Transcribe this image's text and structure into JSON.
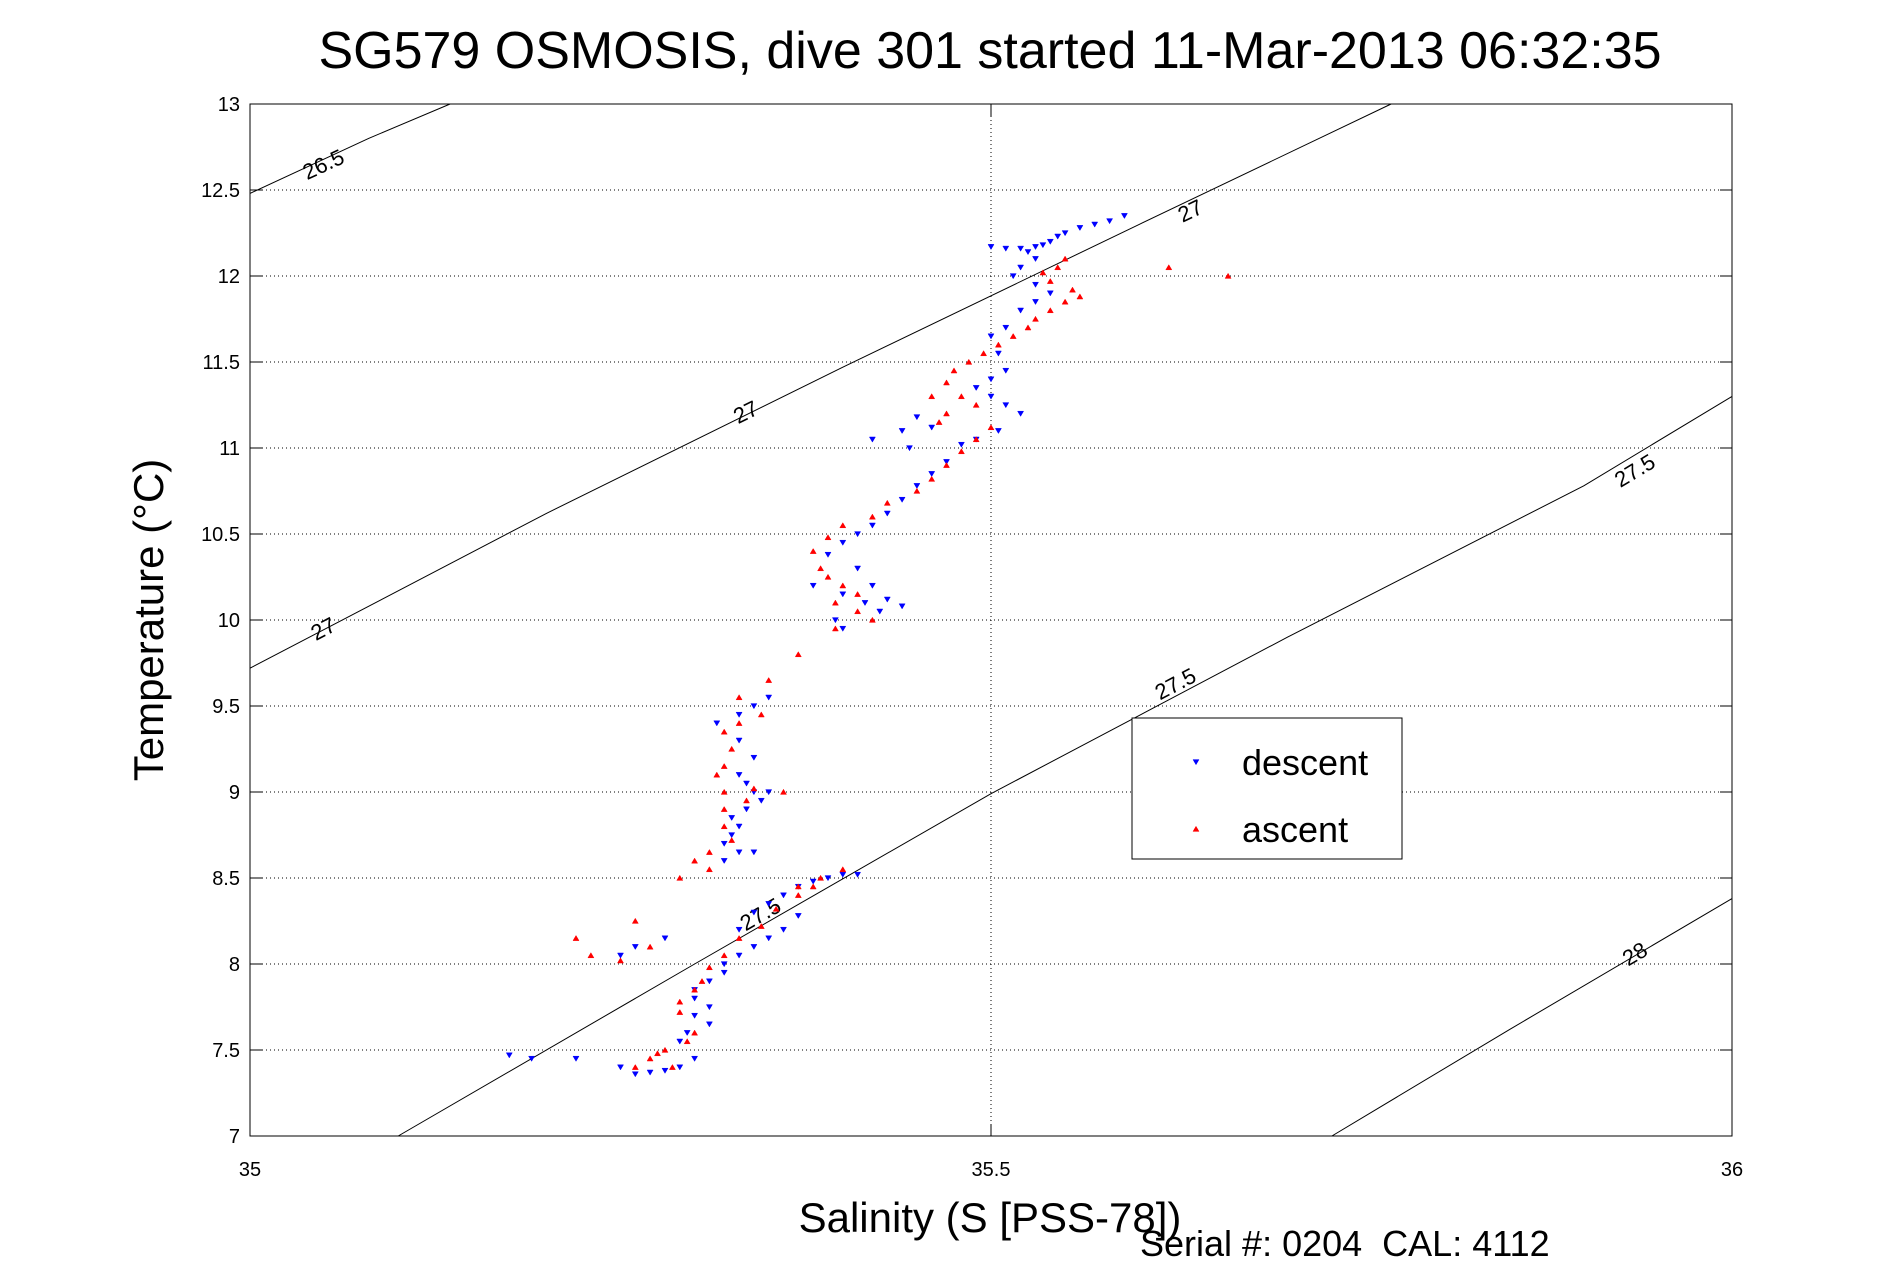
{
  "chart_data": {
    "type": "scatter",
    "title": "SG579 OSMOSIS, dive 301 started 11-Mar-2013 06:32:35",
    "xlabel": "Salinity (S [PSS-78])",
    "ylabel": "Temperature (°C)",
    "xlim": [
      35,
      36
    ],
    "ylim": [
      7,
      13
    ],
    "xticks": [
      35,
      35.5,
      36
    ],
    "xtick_labels": [
      "35",
      "35.5",
      "36"
    ],
    "yticks": [
      7,
      7.5,
      8,
      8.5,
      9,
      9.5,
      10,
      10.5,
      11,
      11.5,
      12,
      12.5,
      13
    ],
    "ytick_labels": [
      "7",
      "7.5",
      "8",
      "8.5",
      "9",
      "9.5",
      "10",
      "10.5",
      "11",
      "11.5",
      "12",
      "12.5",
      "13"
    ],
    "grid": true,
    "legend_position": "center-right",
    "footer": "Serial #: 0204  CAL: 4112",
    "density_contours": [
      {
        "level": "26.5",
        "points": [
          [
            35.0,
            12.48
          ],
          [
            35.08,
            12.8
          ],
          [
            35.135,
            13.0
          ]
        ],
        "labels": [
          {
            "text": "26.5",
            "x": 35.05,
            "y": 12.64
          }
        ]
      },
      {
        "level": "27",
        "points": [
          [
            35.0,
            9.72
          ],
          [
            35.2,
            10.62
          ],
          [
            35.4,
            11.47
          ],
          [
            35.6,
            12.3
          ],
          [
            35.77,
            13.0
          ]
        ],
        "labels": [
          {
            "text": "27",
            "x": 35.05,
            "y": 9.94
          },
          {
            "text": "27",
            "x": 35.335,
            "y": 11.2
          },
          {
            "text": "27",
            "x": 35.635,
            "y": 12.37
          }
        ]
      },
      {
        "level": "27.5",
        "points": [
          [
            35.1,
            7.0
          ],
          [
            35.3,
            8.0
          ],
          [
            35.5,
            8.99
          ],
          [
            35.7,
            9.9
          ],
          [
            35.9,
            10.78
          ],
          [
            36.0,
            11.3
          ]
        ],
        "labels": [
          {
            "text": "27.5",
            "x": 35.345,
            "y": 8.28
          },
          {
            "text": "27.5",
            "x": 35.625,
            "y": 9.62
          },
          {
            "text": "27.5",
            "x": 35.935,
            "y": 10.86
          }
        ]
      },
      {
        "level": "28",
        "points": [
          [
            35.73,
            7.0
          ],
          [
            35.85,
            7.62
          ],
          [
            36.0,
            8.38
          ]
        ],
        "labels": [
          {
            "text": "28",
            "x": 35.935,
            "y": 8.05
          }
        ]
      }
    ],
    "series": [
      {
        "name": "descent",
        "color": "#0000ff",
        "marker": "triangle-down",
        "points": [
          [
            35.59,
            12.35
          ],
          [
            35.58,
            12.32
          ],
          [
            35.57,
            12.3
          ],
          [
            35.56,
            12.28
          ],
          [
            35.55,
            12.25
          ],
          [
            35.545,
            12.23
          ],
          [
            35.54,
            12.2
          ],
          [
            35.535,
            12.18
          ],
          [
            35.53,
            12.17
          ],
          [
            35.52,
            12.16
          ],
          [
            35.51,
            12.16
          ],
          [
            35.5,
            12.17
          ],
          [
            35.525,
            12.14
          ],
          [
            35.53,
            12.1
          ],
          [
            35.52,
            12.05
          ],
          [
            35.515,
            12.0
          ],
          [
            35.53,
            11.95
          ],
          [
            35.54,
            11.9
          ],
          [
            35.53,
            11.85
          ],
          [
            35.52,
            11.8
          ],
          [
            35.51,
            11.7
          ],
          [
            35.5,
            11.65
          ],
          [
            35.505,
            11.55
          ],
          [
            35.51,
            11.45
          ],
          [
            35.5,
            11.4
          ],
          [
            35.49,
            11.35
          ],
          [
            35.5,
            11.3
          ],
          [
            35.51,
            11.25
          ],
          [
            35.52,
            11.2
          ],
          [
            35.505,
            11.1
          ],
          [
            35.49,
            11.05
          ],
          [
            35.48,
            11.02
          ],
          [
            35.46,
            11.12
          ],
          [
            35.45,
            11.18
          ],
          [
            35.44,
            11.1
          ],
          [
            35.42,
            11.05
          ],
          [
            35.445,
            11.0
          ],
          [
            35.47,
            10.92
          ],
          [
            35.46,
            10.85
          ],
          [
            35.45,
            10.78
          ],
          [
            35.44,
            10.7
          ],
          [
            35.43,
            10.62
          ],
          [
            35.42,
            10.55
          ],
          [
            35.41,
            10.5
          ],
          [
            35.4,
            10.45
          ],
          [
            35.39,
            10.38
          ],
          [
            35.41,
            10.3
          ],
          [
            35.42,
            10.2
          ],
          [
            35.43,
            10.12
          ],
          [
            35.44,
            10.08
          ],
          [
            35.425,
            10.05
          ],
          [
            35.415,
            10.1
          ],
          [
            35.4,
            10.15
          ],
          [
            35.38,
            10.2
          ],
          [
            35.395,
            10.0
          ],
          [
            35.4,
            9.95
          ],
          [
            35.35,
            9.55
          ],
          [
            35.34,
            9.5
          ],
          [
            35.33,
            9.45
          ],
          [
            35.315,
            9.4
          ],
          [
            35.33,
            9.3
          ],
          [
            35.34,
            9.2
          ],
          [
            35.33,
            9.1
          ],
          [
            35.335,
            9.05
          ],
          [
            35.34,
            9.0
          ],
          [
            35.35,
            9.0
          ],
          [
            35.345,
            8.95
          ],
          [
            35.335,
            8.9
          ],
          [
            35.325,
            8.85
          ],
          [
            35.33,
            8.8
          ],
          [
            35.325,
            8.75
          ],
          [
            35.32,
            8.7
          ],
          [
            35.33,
            8.65
          ],
          [
            35.34,
            8.65
          ],
          [
            35.32,
            8.6
          ],
          [
            35.41,
            8.52
          ],
          [
            35.4,
            8.52
          ],
          [
            35.39,
            8.5
          ],
          [
            35.38,
            8.48
          ],
          [
            35.37,
            8.45
          ],
          [
            35.36,
            8.4
          ],
          [
            35.35,
            8.35
          ],
          [
            35.34,
            8.3
          ],
          [
            35.33,
            8.2
          ],
          [
            35.28,
            8.15
          ],
          [
            35.26,
            8.1
          ],
          [
            35.25,
            8.05
          ],
          [
            35.37,
            8.28
          ],
          [
            35.36,
            8.2
          ],
          [
            35.35,
            8.15
          ],
          [
            35.34,
            8.1
          ],
          [
            35.33,
            8.05
          ],
          [
            35.32,
            8.0
          ],
          [
            35.32,
            7.95
          ],
          [
            35.31,
            7.9
          ],
          [
            35.3,
            7.85
          ],
          [
            35.3,
            7.8
          ],
          [
            35.31,
            7.75
          ],
          [
            35.3,
            7.7
          ],
          [
            35.31,
            7.65
          ],
          [
            35.295,
            7.6
          ],
          [
            35.29,
            7.55
          ],
          [
            35.3,
            7.45
          ],
          [
            35.29,
            7.4
          ],
          [
            35.28,
            7.38
          ],
          [
            35.27,
            7.37
          ],
          [
            35.26,
            7.36
          ],
          [
            35.175,
            7.47
          ],
          [
            35.19,
            7.45
          ],
          [
            35.22,
            7.45
          ],
          [
            35.25,
            7.4
          ]
        ]
      },
      {
        "name": "ascent",
        "color": "#ff0000",
        "marker": "triangle-up",
        "points": [
          [
            35.55,
            12.1
          ],
          [
            35.545,
            12.05
          ],
          [
            35.535,
            12.02
          ],
          [
            35.54,
            11.97
          ],
          [
            35.555,
            11.92
          ],
          [
            35.56,
            11.88
          ],
          [
            35.55,
            11.85
          ],
          [
            35.54,
            11.8
          ],
          [
            35.53,
            11.75
          ],
          [
            35.525,
            11.7
          ],
          [
            35.515,
            11.65
          ],
          [
            35.505,
            11.6
          ],
          [
            35.495,
            11.55
          ],
          [
            35.485,
            11.5
          ],
          [
            35.475,
            11.45
          ],
          [
            35.47,
            11.38
          ],
          [
            35.48,
            11.3
          ],
          [
            35.49,
            11.25
          ],
          [
            35.47,
            11.2
          ],
          [
            35.46,
            11.3
          ],
          [
            35.465,
            11.15
          ],
          [
            35.5,
            11.12
          ],
          [
            35.49,
            11.05
          ],
          [
            35.48,
            10.98
          ],
          [
            35.47,
            10.9
          ],
          [
            35.46,
            10.82
          ],
          [
            35.45,
            10.75
          ],
          [
            35.43,
            10.68
          ],
          [
            35.42,
            10.6
          ],
          [
            35.4,
            10.55
          ],
          [
            35.39,
            10.48
          ],
          [
            35.38,
            10.4
          ],
          [
            35.385,
            10.3
          ],
          [
            35.39,
            10.25
          ],
          [
            35.4,
            10.2
          ],
          [
            35.41,
            10.15
          ],
          [
            35.395,
            10.1
          ],
          [
            35.41,
            10.05
          ],
          [
            35.42,
            10.0
          ],
          [
            35.395,
            9.95
          ],
          [
            35.37,
            9.8
          ],
          [
            35.35,
            9.65
          ],
          [
            35.33,
            9.55
          ],
          [
            35.345,
            9.45
          ],
          [
            35.33,
            9.4
          ],
          [
            35.32,
            9.35
          ],
          [
            35.325,
            9.25
          ],
          [
            35.32,
            9.15
          ],
          [
            35.315,
            9.1
          ],
          [
            35.32,
            9.0
          ],
          [
            35.335,
            8.95
          ],
          [
            35.36,
            9.0
          ],
          [
            35.34,
            9.02
          ],
          [
            35.32,
            8.9
          ],
          [
            35.32,
            8.8
          ],
          [
            35.325,
            8.72
          ],
          [
            35.31,
            8.65
          ],
          [
            35.3,
            8.6
          ],
          [
            35.31,
            8.55
          ],
          [
            35.29,
            8.5
          ],
          [
            35.37,
            8.45
          ],
          [
            35.4,
            8.55
          ],
          [
            35.385,
            8.5
          ],
          [
            35.38,
            8.45
          ],
          [
            35.37,
            8.4
          ],
          [
            35.355,
            8.32
          ],
          [
            35.345,
            8.22
          ],
          [
            35.33,
            8.15
          ],
          [
            35.32,
            8.05
          ],
          [
            35.31,
            7.98
          ],
          [
            35.305,
            7.9
          ],
          [
            35.3,
            7.85
          ],
          [
            35.29,
            7.78
          ],
          [
            35.29,
            7.72
          ],
          [
            35.3,
            7.6
          ],
          [
            35.295,
            7.55
          ],
          [
            35.28,
            7.5
          ],
          [
            35.27,
            7.45
          ],
          [
            35.26,
            7.4
          ],
          [
            35.285,
            7.4
          ],
          [
            35.275,
            7.48
          ],
          [
            35.25,
            8.02
          ],
          [
            35.27,
            8.1
          ],
          [
            35.26,
            8.25
          ],
          [
            35.23,
            8.05
          ],
          [
            35.22,
            8.15
          ],
          [
            35.62,
            12.05
          ],
          [
            35.66,
            12.0
          ]
        ]
      }
    ]
  }
}
